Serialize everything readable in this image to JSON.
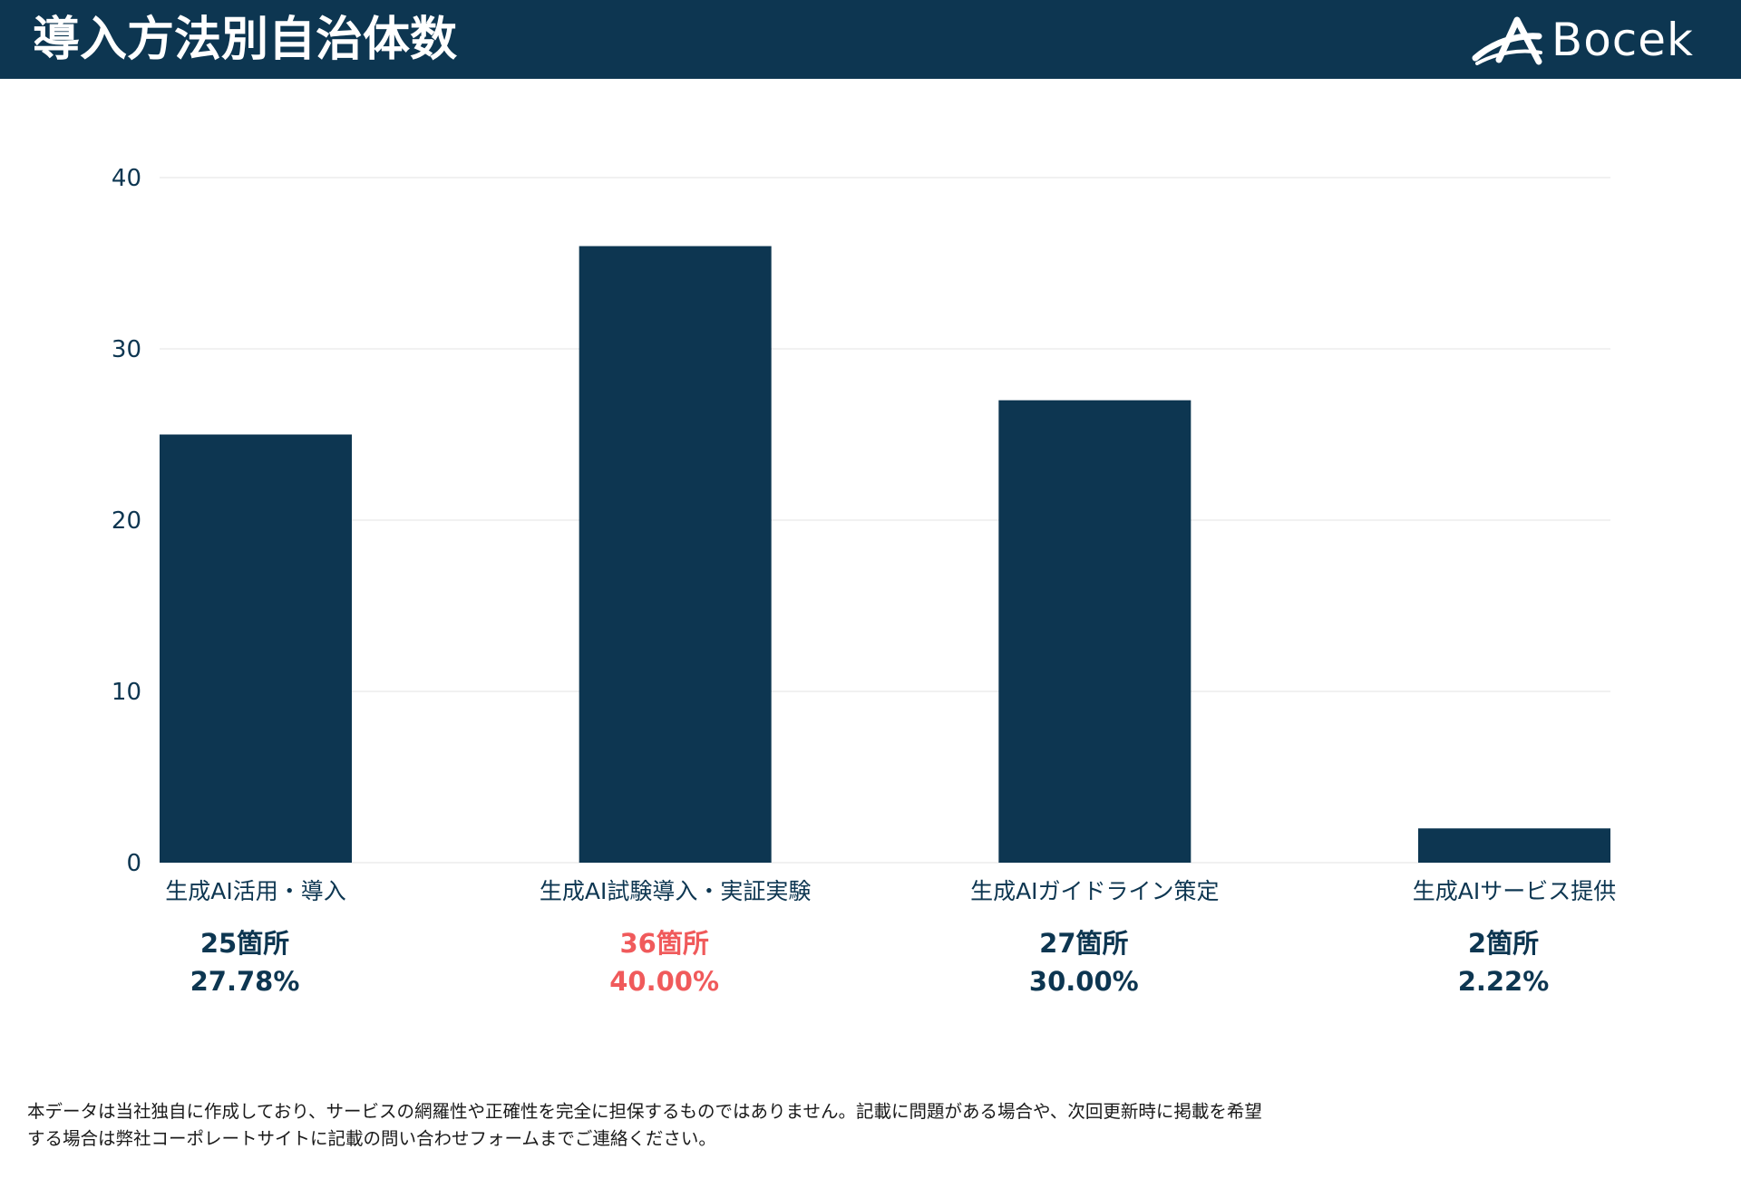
{
  "header": {
    "title": "導入方法別自治体数",
    "logo_text": "Bocek"
  },
  "colors": {
    "primary": "#0d3651",
    "highlight": "#f05a5b",
    "grid": "#e3e3e3"
  },
  "chart_data": {
    "type": "bar",
    "title": "",
    "categories": [
      "生成AI活用・導入",
      "生成AI試験導入・実証実験",
      "生成AIガイドライン策定",
      "生成AIサービス提供"
    ],
    "values": [
      25,
      36,
      27,
      2
    ],
    "ylim": [
      0,
      40
    ],
    "yticks": [
      0,
      10,
      20,
      30,
      40
    ],
    "grid": true,
    "xlabel": "",
    "ylabel": ""
  },
  "stats": [
    {
      "count": "25箇所",
      "percent": "27.78%",
      "highlight": false
    },
    {
      "count": "36箇所",
      "percent": "40.00%",
      "highlight": true
    },
    {
      "count": "27箇所",
      "percent": "30.00%",
      "highlight": false
    },
    {
      "count": "2箇所",
      "percent": "2.22%",
      "highlight": false
    }
  ],
  "footnote": {
    "line1": "本データは当社独自に作成しており、サービスの網羅性や正確性を完全に担保するものではありません。記載に問題がある場合や、次回更新時に掲載を希望",
    "line2": "する場合は弊社コーポレートサイトに記載の問い合わせフォームまでご連絡ください。"
  }
}
